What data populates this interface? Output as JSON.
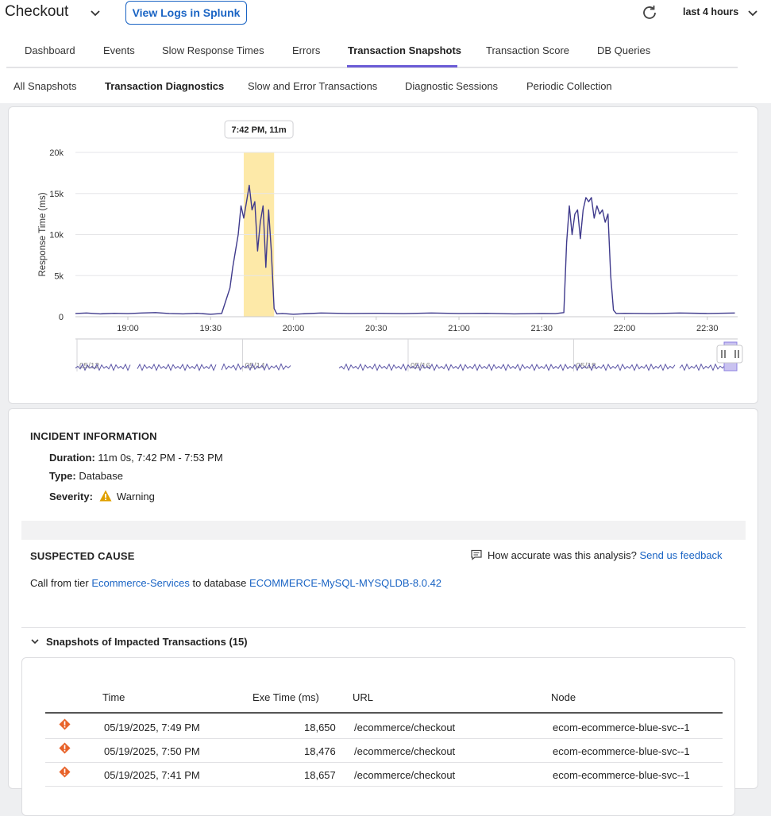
{
  "header": {
    "app_title": "Checkout",
    "splunk_button": "View Logs in Splunk",
    "time_range": "last 4 hours"
  },
  "tabs": [
    {
      "label": "Dashboard",
      "active": false
    },
    {
      "label": "Events",
      "active": false
    },
    {
      "label": "Slow Response Times",
      "active": false
    },
    {
      "label": "Errors",
      "active": false
    },
    {
      "label": "Transaction Snapshots",
      "active": true
    },
    {
      "label": "Transaction Score",
      "active": false
    },
    {
      "label": "DB Queries",
      "active": false
    }
  ],
  "subtabs": [
    {
      "label": "All Snapshots",
      "active": false
    },
    {
      "label": "Transaction Diagnostics",
      "active": true
    },
    {
      "label": "Slow and Error Transactions",
      "active": false
    },
    {
      "label": "Diagnostic Sessions",
      "active": false
    },
    {
      "label": "Periodic Collection",
      "active": false
    }
  ],
  "colors": {
    "accent": "#6b5cd6",
    "link": "#1a64c4",
    "line": "#3f3a8c",
    "highlight": "#fde9a8",
    "warning": "#e0a000",
    "error": "#e8632a"
  },
  "chart_data": {
    "type": "line",
    "title": "",
    "xlabel": "",
    "ylabel": "Response Time (ms)",
    "y_ticks": [
      "0",
      "5k",
      "10k",
      "15k",
      "20k"
    ],
    "ylim": [
      0,
      20000
    ],
    "x_ticks": [
      "19:00",
      "19:30",
      "20:00",
      "20:30",
      "21:00",
      "21:30",
      "22:00",
      "22:30"
    ],
    "x_range": [
      "18:41",
      "22:41"
    ],
    "highlight_tooltip": "7:42 PM, 11m",
    "highlight_range": [
      "19:42",
      "19:53"
    ],
    "grid": true,
    "series": [
      {
        "x": [
          "18:41",
          "18:45",
          "18:50",
          "18:55",
          "19:00",
          "19:05",
          "19:10",
          "19:15",
          "19:20",
          "19:25",
          "19:30",
          "19:34",
          "19:37",
          "19:38",
          "19:40",
          "19:41",
          "19:42",
          "19:43",
          "19:44",
          "19:45",
          "19:46",
          "19:47",
          "19:48",
          "19:49",
          "19:50",
          "19:51",
          "19:52",
          "19:53",
          "19:54",
          "19:56",
          "20:00",
          "20:10",
          "20:20",
          "20:30",
          "20:40",
          "20:50",
          "21:00",
          "21:10",
          "21:20",
          "21:30",
          "21:35",
          "21:38",
          "21:39",
          "21:40",
          "21:41",
          "21:42",
          "21:43",
          "21:44",
          "21:45",
          "21:46",
          "21:47",
          "21:48",
          "21:49",
          "21:50",
          "21:51",
          "21:52",
          "21:53",
          "21:54",
          "21:55",
          "21:56",
          "21:57",
          "22:00",
          "22:10",
          "22:20",
          "22:30",
          "22:40"
        ],
        "y": [
          400,
          450,
          350,
          420,
          380,
          450,
          500,
          400,
          350,
          420,
          300,
          400,
          3500,
          6000,
          10000,
          13500,
          12000,
          14000,
          16000,
          13000,
          14000,
          8000,
          11500,
          13500,
          6000,
          13000,
          8000,
          1000,
          350,
          400,
          300,
          450,
          400,
          420,
          380,
          450,
          400,
          420,
          350,
          400,
          380,
          500,
          9000,
          13500,
          10000,
          12500,
          13000,
          9500,
          13000,
          14500,
          14000,
          14500,
          12000,
          13500,
          12500,
          13000,
          11500,
          12500,
          5000,
          800,
          400,
          420,
          380,
          450,
          400,
          450
        ]
      }
    ]
  },
  "overview": {
    "dates": [
      "05/12",
      "05/14",
      "05/16",
      "05/18"
    ]
  },
  "incident": {
    "section_title": "INCIDENT INFORMATION",
    "duration_label": "Duration:",
    "duration_value": "11m 0s, 7:42 PM - 7:53 PM",
    "type_label": "Type:",
    "type_value": "Database",
    "severity_label": "Severity:",
    "severity_value": "Warning"
  },
  "cause": {
    "section_title": "SUSPECTED CAUSE",
    "feedback_question": "How accurate was this analysis?",
    "feedback_link": "Send us feedback",
    "prefix": "Call from tier",
    "tier": "Ecommerce-Services",
    "middle": "to database",
    "database": "ECOMMERCE-MySQL-MYSQLDB-8.0.42"
  },
  "snapshots": {
    "header": "Snapshots of Impacted Transactions (15)",
    "columns": [
      "Time",
      "Exe Time (ms)",
      "URL",
      "Node"
    ],
    "rows": [
      {
        "time": "05/19/2025, 7:49 PM",
        "exe": "18,650",
        "url": "/ecommerce/checkout",
        "node": "ecom-ecommerce-blue-svc--1"
      },
      {
        "time": "05/19/2025, 7:50 PM",
        "exe": "18,476",
        "url": "/ecommerce/checkout",
        "node": "ecom-ecommerce-blue-svc--1"
      },
      {
        "time": "05/19/2025, 7:41 PM",
        "exe": "18,657",
        "url": "/ecommerce/checkout",
        "node": "ecom-ecommerce-blue-svc--1"
      }
    ]
  }
}
